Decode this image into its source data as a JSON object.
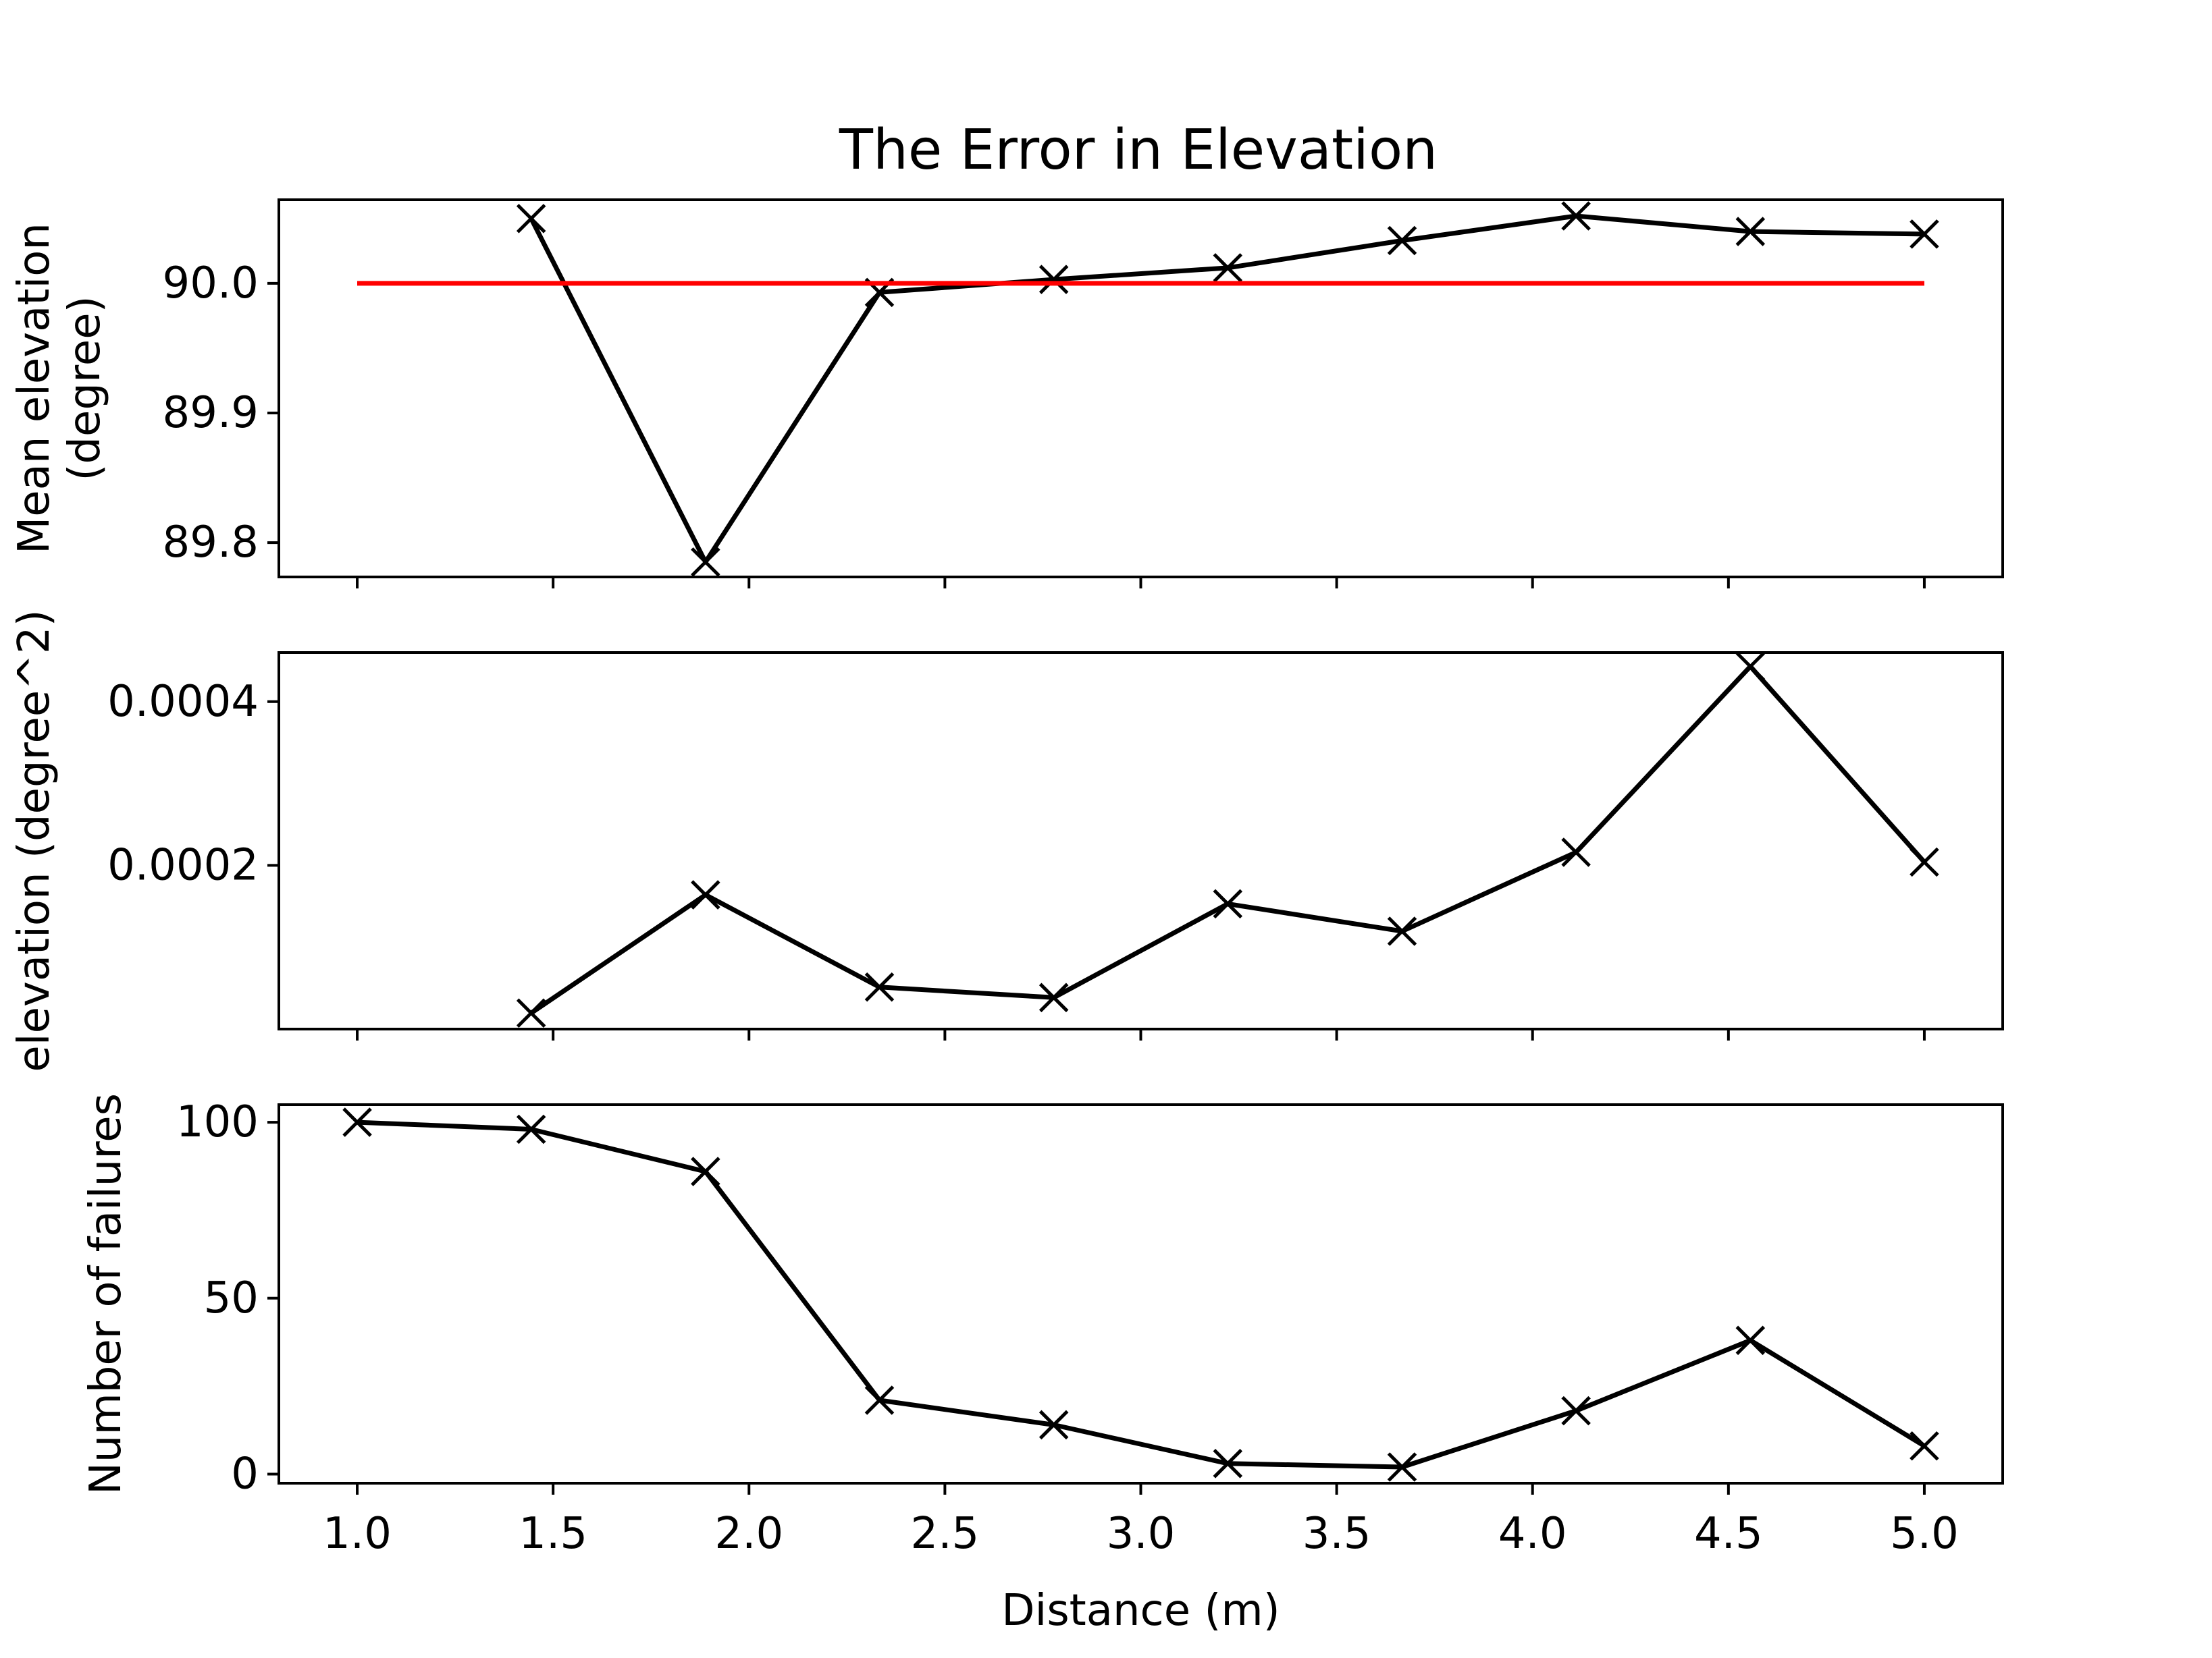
{
  "chart_data": [
    {
      "type": "line",
      "title": "The Error in Elevation",
      "ylabel": "Mean elevation\n(degree)",
      "xlim": [
        0.8,
        5.2
      ],
      "ylim": [
        89.7735,
        90.0645
      ],
      "yticks": [
        89.8,
        89.9,
        90.0
      ],
      "ytick_labels": [
        "89.8",
        "89.9",
        "90.0"
      ],
      "show_x_tick_labels": false,
      "series": [
        {
          "x": [
            1.444,
            1.889,
            2.333,
            2.778,
            3.222,
            3.667,
            4.111,
            4.556,
            5.0
          ],
          "y": [
            90.05,
            89.785,
            89.993,
            90.003,
            90.012,
            90.033,
            90.052,
            90.04,
            90.038
          ],
          "marker": "x",
          "color": "#000000"
        },
        {
          "x": [
            1.0,
            5.0
          ],
          "y": [
            90.0,
            90.0
          ],
          "marker": "none",
          "color": "#ff0000"
        }
      ]
    },
    {
      "type": "line",
      "title": "",
      "ylabel": "elevation (degree^2)",
      "xlim": [
        0.8,
        5.2
      ],
      "ylim": [
        0.0,
        0.00046
      ],
      "yticks": [
        0.0002,
        0.0004
      ],
      "ytick_labels": [
        "0.0002",
        "0.0004"
      ],
      "show_x_tick_labels": false,
      "series": [
        {
          "x": [
            1.444,
            1.889,
            2.333,
            2.778,
            3.222,
            3.667,
            4.111,
            4.556,
            5.0
          ],
          "y": [
            1.96e-05,
            0.000164,
            5.13e-05,
            3.85e-05,
            0.000153,
            0.0001195,
            0.000216,
            0.000443,
            0.000204
          ],
          "marker": "x",
          "color": "#000000"
        }
      ]
    },
    {
      "type": "line",
      "title": "",
      "ylabel": "Number of failures",
      "xlabel": "Distance (m)",
      "xlim": [
        0.8,
        5.2
      ],
      "ylim": [
        -2.6,
        105.0
      ],
      "yticks": [
        0,
        50,
        100
      ],
      "ytick_labels": [
        "0",
        "50",
        "100"
      ],
      "xticks": [
        1.0,
        1.5,
        2.0,
        2.5,
        3.0,
        3.5,
        4.0,
        4.5,
        5.0
      ],
      "xtick_labels": [
        "1.0",
        "1.5",
        "2.0",
        "2.5",
        "3.0",
        "3.5",
        "4.0",
        "4.5",
        "5.0"
      ],
      "show_x_tick_labels": true,
      "series": [
        {
          "x": [
            1.0,
            1.444,
            1.889,
            2.333,
            2.778,
            3.222,
            3.667,
            4.111,
            4.556,
            5.0
          ],
          "y": [
            100,
            98,
            86,
            21,
            14,
            3,
            2,
            18,
            38,
            8
          ],
          "marker": "x",
          "color": "#000000"
        }
      ]
    }
  ]
}
